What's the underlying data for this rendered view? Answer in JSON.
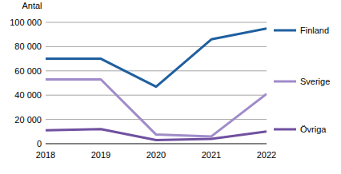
{
  "chart_data": {
    "type": "line",
    "y_label": "Antal",
    "categories": [
      "2018",
      "2019",
      "2020",
      "2021",
      "2022"
    ],
    "series": [
      {
        "name": "Finland",
        "color": "#1f5f9f",
        "values": [
          70000,
          70000,
          47000,
          86000,
          95000
        ]
      },
      {
        "name": "Sverige",
        "color": "#a08bc9",
        "values": [
          53000,
          53000,
          7500,
          6000,
          41000
        ]
      },
      {
        "name": "Övriga",
        "color": "#7050a0",
        "values": [
          11000,
          12000,
          3000,
          4000,
          10000
        ]
      }
    ],
    "ylim": [
      0,
      100000
    ],
    "yticks": [
      0,
      {
        "value": 20000,
        "label": "20 000"
      },
      {
        "value": 40000,
        "label": "40 000"
      },
      {
        "value": 60000,
        "label": "60 000"
      },
      {
        "value": 80000,
        "label": "80 000"
      },
      {
        "value": 100000,
        "label": "100 000"
      }
    ],
    "grid": true,
    "legend": "right"
  }
}
